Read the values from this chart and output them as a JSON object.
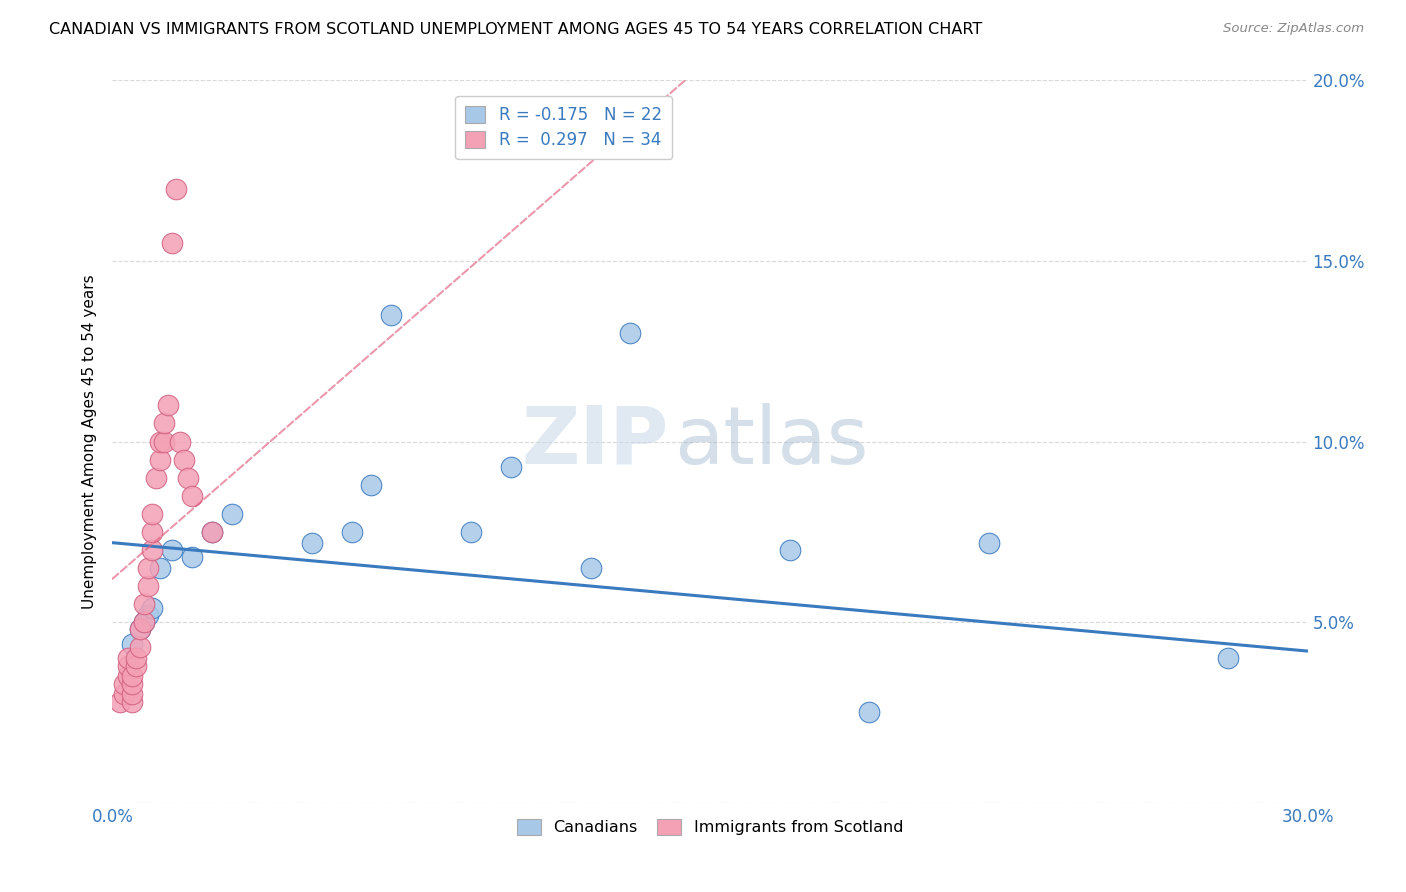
{
  "title": "CANADIAN VS IMMIGRANTS FROM SCOTLAND UNEMPLOYMENT AMONG AGES 45 TO 54 YEARS CORRELATION CHART",
  "source": "Source: ZipAtlas.com",
  "ylabel": "Unemployment Among Ages 45 to 54 years",
  "xlim": [
    0,
    0.3
  ],
  "ylim": [
    0,
    0.2
  ],
  "xticks": [
    0.0,
    0.05,
    0.1,
    0.15,
    0.2,
    0.25,
    0.3
  ],
  "xtick_labels": [
    "0.0%",
    "",
    "",
    "",
    "",
    "",
    "30.0%"
  ],
  "yticks": [
    0.0,
    0.05,
    0.1,
    0.15,
    0.2
  ],
  "ytick_labels": [
    "",
    "5.0%",
    "10.0%",
    "15.0%",
    "20.0%"
  ],
  "canadians_color": "#a8c8e8",
  "immigrants_color": "#f4a0b5",
  "canadians_line_color": "#3a7abf",
  "immigrants_line_color": "#e06080",
  "canadians_R": -0.175,
  "canadians_N": 22,
  "immigrants_R": 0.297,
  "immigrants_N": 34,
  "canadians_x": [
    0.005,
    0.007,
    0.008,
    0.009,
    0.01,
    0.012,
    0.015,
    0.02,
    0.025,
    0.03,
    0.05,
    0.06,
    0.065,
    0.07,
    0.09,
    0.1,
    0.12,
    0.13,
    0.17,
    0.19,
    0.22,
    0.28
  ],
  "canadians_y": [
    0.044,
    0.048,
    0.05,
    0.052,
    0.054,
    0.065,
    0.07,
    0.068,
    0.075,
    0.08,
    0.072,
    0.075,
    0.088,
    0.135,
    0.075,
    0.093,
    0.065,
    0.13,
    0.07,
    0.025,
    0.072,
    0.04
  ],
  "immigrants_x": [
    0.002,
    0.003,
    0.003,
    0.004,
    0.004,
    0.004,
    0.005,
    0.005,
    0.005,
    0.005,
    0.006,
    0.006,
    0.007,
    0.007,
    0.008,
    0.008,
    0.009,
    0.009,
    0.01,
    0.01,
    0.01,
    0.011,
    0.012,
    0.012,
    0.013,
    0.013,
    0.014,
    0.015,
    0.016,
    0.017,
    0.018,
    0.019,
    0.02,
    0.025
  ],
  "immigrants_y": [
    0.028,
    0.03,
    0.033,
    0.035,
    0.038,
    0.04,
    0.028,
    0.03,
    0.033,
    0.035,
    0.038,
    0.04,
    0.043,
    0.048,
    0.05,
    0.055,
    0.06,
    0.065,
    0.07,
    0.075,
    0.08,
    0.09,
    0.095,
    0.1,
    0.1,
    0.105,
    0.11,
    0.155,
    0.17,
    0.1,
    0.095,
    0.09,
    0.085,
    0.075
  ],
  "watermark_line1": "ZIP",
  "watermark_line2": "atlas",
  "background_color": "#ffffff",
  "grid_color": "#d0d0d0"
}
